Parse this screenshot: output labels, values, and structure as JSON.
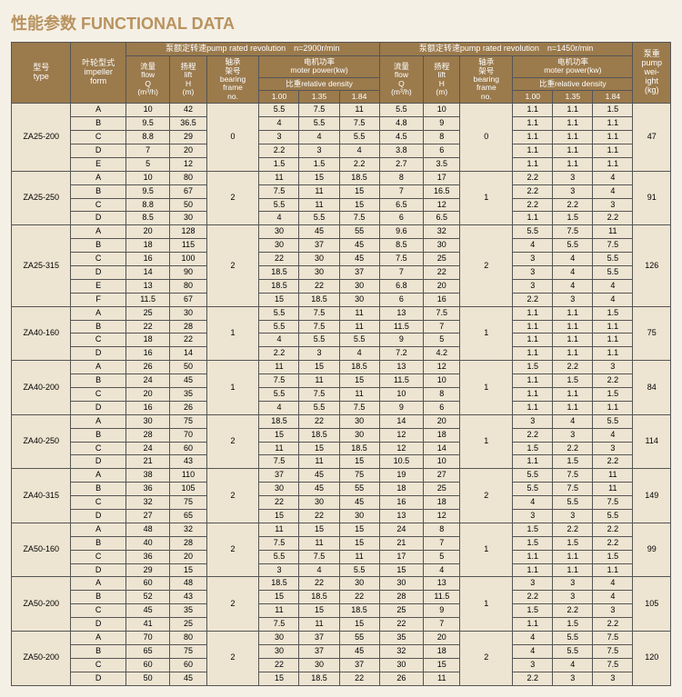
{
  "title": "性能参数 FUNCTIONAL DATA",
  "headers": {
    "group1": "泵额定转速pump rated revolution　n=2900r/min",
    "group2": "泵额定转速pump rated revolution　n=1450r/min",
    "type": "型号\ntype",
    "impeller": "叶轮型式\nimpeller\nform",
    "flow": "流量\nflow\nQ\n(m³/h)",
    "lift": "扬程\nlift\nH\n(m)",
    "bearing": "轴承\n架号\nbearing\nframe\nno.",
    "motor": "电机功率\nmoter power(kw)",
    "density": "比重relative density",
    "d100": "1.00",
    "d135": "1.35",
    "d184": "1.84",
    "weight": "泵重\npump\nwei-\night\n(kg)"
  },
  "groups": [
    {
      "type": "ZA25-200",
      "bearing1": "0",
      "bearing2": "0",
      "weight": "47",
      "rows": [
        {
          "imp": "A",
          "q1": "10",
          "h1": "42",
          "p1": [
            "5.5",
            "7.5",
            "11"
          ],
          "q2": "5.5",
          "h2": "10",
          "p2": [
            "1.1",
            "1.1",
            "1.5"
          ]
        },
        {
          "imp": "B",
          "q1": "9.5",
          "h1": "36.5",
          "p1": [
            "4",
            "5.5",
            "7.5"
          ],
          "q2": "4.8",
          "h2": "9",
          "p2": [
            "1.1",
            "1.1",
            "1.1"
          ]
        },
        {
          "imp": "C",
          "q1": "8.8",
          "h1": "29",
          "p1": [
            "3",
            "4",
            "5.5"
          ],
          "q2": "4.5",
          "h2": "8",
          "p2": [
            "1.1",
            "1.1",
            "1.1"
          ]
        },
        {
          "imp": "D",
          "q1": "7",
          "h1": "20",
          "p1": [
            "2.2",
            "3",
            "4"
          ],
          "q2": "3.8",
          "h2": "6",
          "p2": [
            "1.1",
            "1.1",
            "1.1"
          ]
        },
        {
          "imp": "E",
          "q1": "5",
          "h1": "12",
          "p1": [
            "1.5",
            "1.5",
            "2.2"
          ],
          "q2": "2.7",
          "h2": "3.5",
          "p2": [
            "1.1",
            "1.1",
            "1.1"
          ]
        }
      ]
    },
    {
      "type": "ZA25-250",
      "bearing1": "2",
      "bearing2": "1",
      "weight": "91",
      "rows": [
        {
          "imp": "A",
          "q1": "10",
          "h1": "80",
          "p1": [
            "11",
            "15",
            "18.5"
          ],
          "q2": "8",
          "h2": "17",
          "p2": [
            "2.2",
            "3",
            "4"
          ]
        },
        {
          "imp": "B",
          "q1": "9.5",
          "h1": "67",
          "p1": [
            "7.5",
            "11",
            "15"
          ],
          "q2": "7",
          "h2": "16.5",
          "p2": [
            "2.2",
            "3",
            "4"
          ]
        },
        {
          "imp": "C",
          "q1": "8.8",
          "h1": "50",
          "p1": [
            "5.5",
            "11",
            "15"
          ],
          "q2": "6.5",
          "h2": "12",
          "p2": [
            "2.2",
            "2.2",
            "3"
          ]
        },
        {
          "imp": "D",
          "q1": "8.5",
          "h1": "30",
          "p1": [
            "4",
            "5.5",
            "7.5"
          ],
          "q2": "6",
          "h2": "6.5",
          "p2": [
            "1.1",
            "1.5",
            "2.2"
          ]
        }
      ]
    },
    {
      "type": "ZA25-315",
      "bearing1": "2",
      "bearing2": "2",
      "weight": "126",
      "rows": [
        {
          "imp": "A",
          "q1": "20",
          "h1": "128",
          "p1": [
            "30",
            "45",
            "55"
          ],
          "q2": "9.6",
          "h2": "32",
          "p2": [
            "5.5",
            "7.5",
            "11"
          ]
        },
        {
          "imp": "B",
          "q1": "18",
          "h1": "115",
          "p1": [
            "30",
            "37",
            "45"
          ],
          "q2": "8.5",
          "h2": "30",
          "p2": [
            "4",
            "5.5",
            "7.5"
          ]
        },
        {
          "imp": "C",
          "q1": "16",
          "h1": "100",
          "p1": [
            "22",
            "30",
            "45"
          ],
          "q2": "7.5",
          "h2": "25",
          "p2": [
            "3",
            "4",
            "5.5"
          ]
        },
        {
          "imp": "D",
          "q1": "14",
          "h1": "90",
          "p1": [
            "18.5",
            "30",
            "37"
          ],
          "q2": "7",
          "h2": "22",
          "p2": [
            "3",
            "4",
            "5.5"
          ]
        },
        {
          "imp": "E",
          "q1": "13",
          "h1": "80",
          "p1": [
            "18.5",
            "22",
            "30"
          ],
          "q2": "6.8",
          "h2": "20",
          "p2": [
            "3",
            "4",
            "4"
          ]
        },
        {
          "imp": "F",
          "q1": "11.5",
          "h1": "67",
          "p1": [
            "15",
            "18.5",
            "30"
          ],
          "q2": "6",
          "h2": "16",
          "p2": [
            "2.2",
            "3",
            "4"
          ]
        }
      ]
    },
    {
      "type": "ZA40-160",
      "bearing1": "1",
      "bearing2": "1",
      "weight": "75",
      "rows": [
        {
          "imp": "A",
          "q1": "25",
          "h1": "30",
          "p1": [
            "5.5",
            "7.5",
            "11"
          ],
          "q2": "13",
          "h2": "7.5",
          "p2": [
            "1.1",
            "1.1",
            "1.5"
          ]
        },
        {
          "imp": "B",
          "q1": "22",
          "h1": "28",
          "p1": [
            "5.5",
            "7.5",
            "11"
          ],
          "q2": "11.5",
          "h2": "7",
          "p2": [
            "1.1",
            "1.1",
            "1.1"
          ]
        },
        {
          "imp": "C",
          "q1": "18",
          "h1": "22",
          "p1": [
            "4",
            "5.5",
            "5.5"
          ],
          "q2": "9",
          "h2": "5",
          "p2": [
            "1.1",
            "1.1",
            "1.1"
          ]
        },
        {
          "imp": "D",
          "q1": "16",
          "h1": "14",
          "p1": [
            "2.2",
            "3",
            "4"
          ],
          "q2": "7.2",
          "h2": "4.2",
          "p2": [
            "1.1",
            "1.1",
            "1.1"
          ]
        }
      ]
    },
    {
      "type": "ZA40-200",
      "bearing1": "1",
      "bearing2": "1",
      "weight": "84",
      "rows": [
        {
          "imp": "A",
          "q1": "26",
          "h1": "50",
          "p1": [
            "11",
            "15",
            "18.5"
          ],
          "q2": "13",
          "h2": "12",
          "p2": [
            "1.5",
            "2.2",
            "3"
          ]
        },
        {
          "imp": "B",
          "q1": "24",
          "h1": "45",
          "p1": [
            "7.5",
            "11",
            "15"
          ],
          "q2": "11.5",
          "h2": "10",
          "p2": [
            "1.1",
            "1.5",
            "2.2"
          ]
        },
        {
          "imp": "C",
          "q1": "20",
          "h1": "35",
          "p1": [
            "5.5",
            "7.5",
            "11"
          ],
          "q2": "10",
          "h2": "8",
          "p2": [
            "1.1",
            "1.1",
            "1.5"
          ]
        },
        {
          "imp": "D",
          "q1": "16",
          "h1": "26",
          "p1": [
            "4",
            "5.5",
            "7.5"
          ],
          "q2": "9",
          "h2": "6",
          "p2": [
            "1.1",
            "1.1",
            "1.1"
          ]
        }
      ]
    },
    {
      "type": "ZA40-250",
      "bearing1": "2",
      "bearing2": "1",
      "weight": "114",
      "rows": [
        {
          "imp": "A",
          "q1": "30",
          "h1": "75",
          "p1": [
            "18.5",
            "22",
            "30"
          ],
          "q2": "14",
          "h2": "20",
          "p2": [
            "3",
            "4",
            "5.5"
          ]
        },
        {
          "imp": "B",
          "q1": "28",
          "h1": "70",
          "p1": [
            "15",
            "18.5",
            "30"
          ],
          "q2": "12",
          "h2": "18",
          "p2": [
            "2.2",
            "3",
            "4"
          ]
        },
        {
          "imp": "C",
          "q1": "24",
          "h1": "60",
          "p1": [
            "11",
            "15",
            "18.5"
          ],
          "q2": "12",
          "h2": "14",
          "p2": [
            "1.5",
            "2.2",
            "3"
          ]
        },
        {
          "imp": "D",
          "q1": "21",
          "h1": "43",
          "p1": [
            "7.5",
            "11",
            "15"
          ],
          "q2": "10.5",
          "h2": "10",
          "p2": [
            "1.1",
            "1.5",
            "2.2"
          ]
        }
      ]
    },
    {
      "type": "ZA40-315",
      "bearing1": "2",
      "bearing2": "2",
      "weight": "149",
      "rows": [
        {
          "imp": "A",
          "q1": "38",
          "h1": "110",
          "p1": [
            "37",
            "45",
            "75"
          ],
          "q2": "19",
          "h2": "27",
          "p2": [
            "5.5",
            "7.5",
            "11"
          ]
        },
        {
          "imp": "B",
          "q1": "36",
          "h1": "105",
          "p1": [
            "30",
            "45",
            "55"
          ],
          "q2": "18",
          "h2": "25",
          "p2": [
            "5.5",
            "7.5",
            "11"
          ]
        },
        {
          "imp": "C",
          "q1": "32",
          "h1": "75",
          "p1": [
            "22",
            "30",
            "45"
          ],
          "q2": "16",
          "h2": "18",
          "p2": [
            "4",
            "5.5",
            "7.5"
          ]
        },
        {
          "imp": "D",
          "q1": "27",
          "h1": "65",
          "p1": [
            "15",
            "22",
            "30"
          ],
          "q2": "13",
          "h2": "12",
          "p2": [
            "3",
            "3",
            "5.5"
          ]
        }
      ]
    },
    {
      "type": "ZA50-160",
      "bearing1": "2",
      "bearing2": "1",
      "weight": "99",
      "rows": [
        {
          "imp": "A",
          "q1": "48",
          "h1": "32",
          "p1": [
            "11",
            "15",
            "15"
          ],
          "q2": "24",
          "h2": "8",
          "p2": [
            "1.5",
            "2.2",
            "2.2"
          ]
        },
        {
          "imp": "B",
          "q1": "40",
          "h1": "28",
          "p1": [
            "7.5",
            "11",
            "15"
          ],
          "q2": "21",
          "h2": "7",
          "p2": [
            "1.5",
            "1.5",
            "2.2"
          ]
        },
        {
          "imp": "C",
          "q1": "36",
          "h1": "20",
          "p1": [
            "5.5",
            "7.5",
            "11"
          ],
          "q2": "17",
          "h2": "5",
          "p2": [
            "1.1",
            "1.1",
            "1.5"
          ]
        },
        {
          "imp": "D",
          "q1": "29",
          "h1": "15",
          "p1": [
            "3",
            "4",
            "5.5"
          ],
          "q2": "15",
          "h2": "4",
          "p2": [
            "1.1",
            "1.1",
            "1.1"
          ]
        }
      ]
    },
    {
      "type": "ZA50-200",
      "bearing1": "2",
      "bearing2": "1",
      "weight": "105",
      "rows": [
        {
          "imp": "A",
          "q1": "60",
          "h1": "48",
          "p1": [
            "18.5",
            "22",
            "30"
          ],
          "q2": "30",
          "h2": "13",
          "p2": [
            "3",
            "3",
            "4"
          ]
        },
        {
          "imp": "B",
          "q1": "52",
          "h1": "43",
          "p1": [
            "15",
            "18.5",
            "22"
          ],
          "q2": "28",
          "h2": "11.5",
          "p2": [
            "2.2",
            "3",
            "4"
          ]
        },
        {
          "imp": "C",
          "q1": "45",
          "h1": "35",
          "p1": [
            "11",
            "15",
            "18.5"
          ],
          "q2": "25",
          "h2": "9",
          "p2": [
            "1.5",
            "2.2",
            "3"
          ]
        },
        {
          "imp": "D",
          "q1": "41",
          "h1": "25",
          "p1": [
            "7.5",
            "11",
            "15"
          ],
          "q2": "22",
          "h2": "7",
          "p2": [
            "1.1",
            "1.5",
            "2.2"
          ]
        }
      ]
    },
    {
      "type": "ZA50-200",
      "bearing1": "2",
      "bearing2": "2",
      "weight": "120",
      "rows": [
        {
          "imp": "A",
          "q1": "70",
          "h1": "80",
          "p1": [
            "30",
            "37",
            "55"
          ],
          "q2": "35",
          "h2": "20",
          "p2": [
            "4",
            "5.5",
            "7.5"
          ]
        },
        {
          "imp": "B",
          "q1": "65",
          "h1": "75",
          "p1": [
            "30",
            "37",
            "45"
          ],
          "q2": "32",
          "h2": "18",
          "p2": [
            "4",
            "5.5",
            "7.5"
          ]
        },
        {
          "imp": "C",
          "q1": "60",
          "h1": "60",
          "p1": [
            "22",
            "30",
            "37"
          ],
          "q2": "30",
          "h2": "15",
          "p2": [
            "3",
            "4",
            "7.5"
          ]
        },
        {
          "imp": "D",
          "q1": "50",
          "h1": "45",
          "p1": [
            "15",
            "18.5",
            "22"
          ],
          "q2": "26",
          "h2": "11",
          "p2": [
            "2.2",
            "3",
            "3"
          ]
        }
      ]
    }
  ]
}
